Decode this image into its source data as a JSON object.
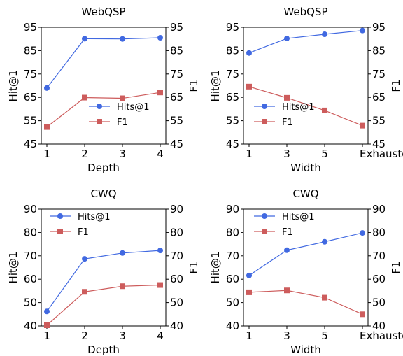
{
  "figure": {
    "colors": {
      "hits": "#4169e1",
      "f1": "#cd5c5c"
    }
  },
  "chart_data": [
    {
      "type": "line",
      "title": "WebQSP",
      "xlabel": "Depth",
      "ylabel_left": "Hit@1",
      "ylabel_right": "F1",
      "categories": [
        "1",
        "2",
        "3",
        "4"
      ],
      "ylim": [
        45,
        95
      ],
      "yticks": [
        45,
        55,
        65,
        75,
        85,
        95
      ],
      "series": [
        {
          "name": "Hits@1",
          "axis": "left",
          "marker": "circle",
          "values": [
            69.0,
            90.1,
            90.0,
            90.5
          ]
        },
        {
          "name": "F1",
          "axis": "right",
          "marker": "square",
          "values": [
            52.3,
            64.9,
            64.6,
            67.1
          ]
        }
      ],
      "legend": "lower-right",
      "grid": false
    },
    {
      "type": "line",
      "title": "WebQSP",
      "xlabel": "Width",
      "ylabel_left": "Hit@1",
      "ylabel_right": "F1",
      "categories": [
        "1",
        "3",
        "5",
        "Exhausted"
      ],
      "ylim": [
        45,
        95
      ],
      "yticks": [
        45,
        55,
        65,
        75,
        85,
        95
      ],
      "series": [
        {
          "name": "Hits@1",
          "axis": "left",
          "marker": "circle",
          "values": [
            84.0,
            90.2,
            92.0,
            93.6
          ]
        },
        {
          "name": "F1",
          "axis": "right",
          "marker": "square",
          "values": [
            69.6,
            64.8,
            59.4,
            52.9
          ]
        }
      ],
      "legend": "lower-center",
      "grid": false
    },
    {
      "type": "line",
      "title": "CWQ",
      "xlabel": "Depth",
      "ylabel_left": "Hit@1",
      "ylabel_right": "F1",
      "categories": [
        "1",
        "2",
        "3",
        "4"
      ],
      "ylim": [
        40,
        90
      ],
      "yticks": [
        40,
        50,
        60,
        70,
        80,
        90
      ],
      "series": [
        {
          "name": "Hits@1",
          "axis": "left",
          "marker": "circle",
          "values": [
            46.2,
            68.7,
            71.2,
            72.3
          ]
        },
        {
          "name": "F1",
          "axis": "right",
          "marker": "square",
          "values": [
            40.3,
            54.6,
            57.0,
            57.5
          ]
        }
      ],
      "legend": "upper-left",
      "grid": false
    },
    {
      "type": "line",
      "title": "CWQ",
      "xlabel": "Width",
      "ylabel_left": "Hit@1",
      "ylabel_right": "F1",
      "categories": [
        "1",
        "3",
        "5",
        "Exhausted"
      ],
      "ylim": [
        40,
        90
      ],
      "yticks": [
        40,
        50,
        60,
        70,
        80,
        90
      ],
      "series": [
        {
          "name": "Hits@1",
          "axis": "left",
          "marker": "circle",
          "values": [
            61.6,
            72.4,
            76.0,
            79.8
          ]
        },
        {
          "name": "F1",
          "axis": "right",
          "marker": "square",
          "values": [
            54.4,
            55.2,
            52.1,
            45.0
          ]
        }
      ],
      "legend": "upper-left",
      "grid": false
    }
  ]
}
